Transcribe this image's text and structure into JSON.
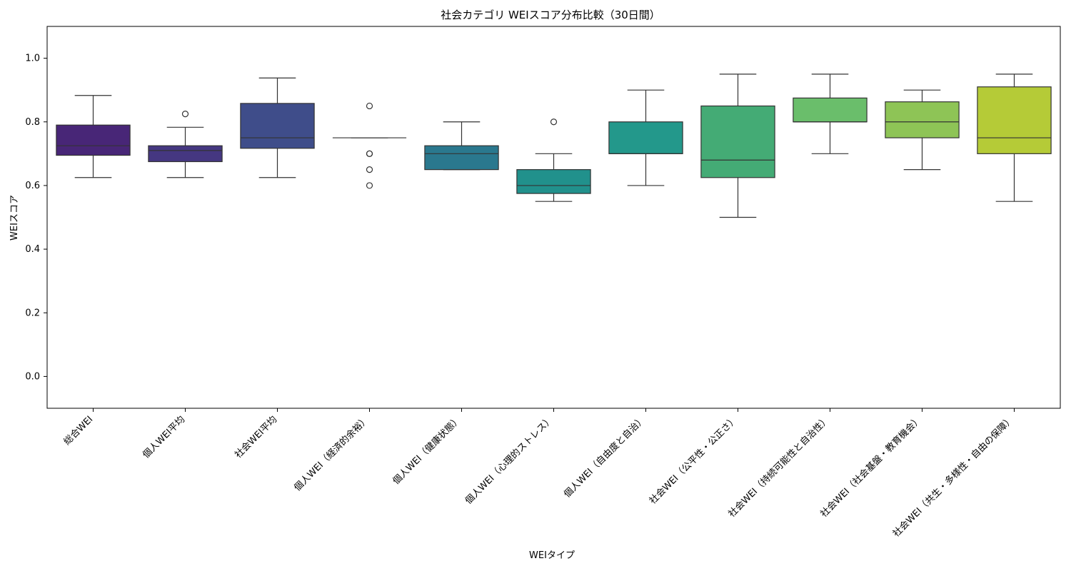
{
  "chart_data": {
    "type": "box",
    "title": "社会カテゴリ WEIスコア分布比較（30日間）",
    "xlabel": "WEIタイプ",
    "ylabel": "WEIスコア",
    "ylim": [
      -0.1,
      1.1
    ],
    "yticks": [
      "0.0",
      "0.2",
      "0.4",
      "0.6",
      "0.8",
      "1.0"
    ],
    "grid": false,
    "legend": "none",
    "categories": [
      "総合WEI",
      "個人WEI平均",
      "社会WEI平均",
      "個人WEI（経済的余裕）",
      "個人WEI（健康状態）",
      "個人WEI（心理的ストレス）",
      "個人WEI（自由度と自治）",
      "社会WEI（公平性・公正さ）",
      "社会WEI（持続可能性と自治性）",
      "社会WEI（社会基盤・教育機会）",
      "社会WEI（共生・多様性・自由の保障）"
    ],
    "boxes": [
      {
        "whisker_low": 0.625,
        "q1": 0.695,
        "median": 0.725,
        "q3": 0.79,
        "whisker_high": 0.883,
        "outliers": [],
        "color": "#482677"
      },
      {
        "whisker_low": 0.625,
        "q1": 0.675,
        "median": 0.71,
        "q3": 0.725,
        "whisker_high": 0.783,
        "outliers": [
          0.825
        ],
        "color": "#453781"
      },
      {
        "whisker_low": 0.625,
        "q1": 0.717,
        "median": 0.75,
        "q3": 0.858,
        "whisker_high": 0.938,
        "outliers": [],
        "color": "#3f4d8a"
      },
      {
        "whisker_low": 0.75,
        "q1": 0.75,
        "median": 0.75,
        "q3": 0.75,
        "whisker_high": 0.75,
        "outliers": [
          0.85,
          0.7,
          0.7,
          0.65,
          0.6
        ],
        "color": "#35608d"
      },
      {
        "whisker_low": 0.65,
        "q1": 0.65,
        "median": 0.7,
        "q3": 0.725,
        "whisker_high": 0.8,
        "outliers": [],
        "color": "#2a788e"
      },
      {
        "whisker_low": 0.55,
        "q1": 0.575,
        "median": 0.6,
        "q3": 0.65,
        "whisker_high": 0.7,
        "outliers": [
          0.8
        ],
        "color": "#21918c"
      },
      {
        "whisker_low": 0.6,
        "q1": 0.7,
        "median": 0.7,
        "q3": 0.8,
        "whisker_high": 0.9,
        "outliers": [],
        "color": "#23988b"
      },
      {
        "whisker_low": 0.5,
        "q1": 0.625,
        "median": 0.68,
        "q3": 0.85,
        "whisker_high": 0.95,
        "outliers": [],
        "color": "#44ab75"
      },
      {
        "whisker_low": 0.7,
        "q1": 0.8,
        "median": 0.8,
        "q3": 0.875,
        "whisker_high": 0.95,
        "outliers": [],
        "color": "#6abe6b"
      },
      {
        "whisker_low": 0.65,
        "q1": 0.75,
        "median": 0.8,
        "q3": 0.863,
        "whisker_high": 0.9,
        "outliers": [],
        "color": "#8ec456"
      },
      {
        "whisker_low": 0.55,
        "q1": 0.7,
        "median": 0.75,
        "q3": 0.91,
        "whisker_high": 0.95,
        "outliers": [],
        "color": "#b5cb37"
      }
    ]
  }
}
